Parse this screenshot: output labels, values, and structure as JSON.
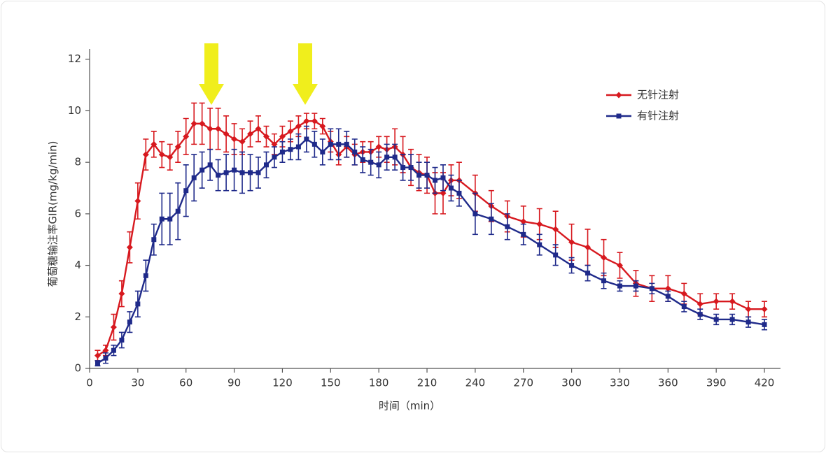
{
  "chart_data": {
    "type": "line",
    "xlabel": "时间（min）",
    "ylabel": "葡萄糖输注率GIR(mg/kg/min)",
    "x": [
      5,
      10,
      15,
      20,
      25,
      30,
      35,
      40,
      45,
      50,
      55,
      60,
      65,
      70,
      75,
      80,
      85,
      90,
      95,
      100,
      105,
      110,
      115,
      120,
      125,
      130,
      135,
      140,
      145,
      150,
      155,
      160,
      165,
      170,
      175,
      180,
      185,
      190,
      195,
      200,
      205,
      210,
      215,
      220,
      225,
      230,
      240,
      250,
      260,
      270,
      280,
      290,
      300,
      310,
      320,
      330,
      340,
      350,
      360,
      370,
      380,
      390,
      400,
      410,
      420
    ],
    "series": [
      {
        "name": "无针注射",
        "color": "#d7191f",
        "marker": "diamond",
        "values": [
          0.5,
          0.7,
          1.6,
          2.9,
          4.7,
          6.5,
          8.3,
          8.7,
          8.3,
          8.2,
          8.6,
          9.0,
          9.5,
          9.5,
          9.3,
          9.3,
          9.1,
          8.9,
          8.8,
          9.1,
          9.3,
          9.0,
          8.7,
          9.0,
          9.2,
          9.4,
          9.6,
          9.6,
          9.4,
          8.8,
          8.3,
          8.6,
          8.3,
          8.4,
          8.4,
          8.6,
          8.5,
          8.6,
          8.3,
          7.8,
          7.6,
          7.5,
          6.8,
          6.8,
          7.3,
          7.3,
          6.8,
          6.3,
          5.9,
          5.7,
          5.6,
          5.4,
          4.9,
          4.7,
          4.3,
          4.0,
          3.3,
          3.1,
          3.1,
          2.9,
          2.5,
          2.6,
          2.6,
          2.3,
          2.3
        ],
        "errors": [
          0.2,
          0.2,
          0.5,
          0.5,
          0.6,
          0.7,
          0.6,
          0.5,
          0.5,
          0.5,
          0.6,
          0.7,
          0.8,
          0.8,
          0.8,
          0.8,
          0.7,
          0.6,
          0.5,
          0.5,
          0.5,
          0.4,
          0.4,
          0.4,
          0.4,
          0.4,
          0.3,
          0.3,
          0.3,
          0.4,
          0.4,
          0.4,
          0.4,
          0.4,
          0.4,
          0.4,
          0.5,
          0.7,
          0.7,
          0.7,
          0.7,
          0.7,
          0.8,
          0.8,
          0.6,
          0.7,
          0.7,
          0.6,
          0.6,
          0.6,
          0.6,
          0.7,
          0.7,
          0.7,
          0.7,
          0.5,
          0.5,
          0.5,
          0.5,
          0.4,
          0.4,
          0.3,
          0.3,
          0.3,
          0.3
        ]
      },
      {
        "name": "有针注射",
        "color": "#1f2a8a",
        "marker": "square",
        "values": [
          0.2,
          0.4,
          0.7,
          1.1,
          1.8,
          2.5,
          3.6,
          5.0,
          5.8,
          5.8,
          6.1,
          6.9,
          7.4,
          7.7,
          7.9,
          7.5,
          7.6,
          7.7,
          7.6,
          7.6,
          7.6,
          7.9,
          8.2,
          8.4,
          8.5,
          8.6,
          8.9,
          8.7,
          8.4,
          8.7,
          8.7,
          8.7,
          8.4,
          8.1,
          8.0,
          7.9,
          8.2,
          8.2,
          7.8,
          7.8,
          7.5,
          7.5,
          7.3,
          7.4,
          7.0,
          6.8,
          6.0,
          5.8,
          5.5,
          5.2,
          4.8,
          4.4,
          4.0,
          3.7,
          3.4,
          3.2,
          3.2,
          3.1,
          2.8,
          2.4,
          2.1,
          1.9,
          1.9,
          1.8,
          1.7
        ],
        "errors": [
          0.1,
          0.2,
          0.2,
          0.3,
          0.4,
          0.5,
          0.6,
          0.6,
          1.0,
          1.0,
          1.1,
          1.0,
          0.9,
          0.7,
          0.6,
          0.6,
          0.7,
          0.8,
          0.8,
          0.7,
          0.6,
          0.5,
          0.4,
          0.4,
          0.4,
          0.5,
          0.5,
          0.5,
          0.5,
          0.6,
          0.6,
          0.5,
          0.5,
          0.5,
          0.5,
          0.5,
          0.5,
          0.5,
          0.5,
          0.5,
          0.5,
          0.5,
          0.5,
          0.5,
          0.5,
          0.5,
          0.8,
          0.6,
          0.5,
          0.4,
          0.4,
          0.4,
          0.3,
          0.3,
          0.3,
          0.2,
          0.2,
          0.2,
          0.2,
          0.2,
          0.2,
          0.2,
          0.2,
          0.2,
          0.2
        ]
      }
    ],
    "xlim": [
      0,
      430
    ],
    "xticks": [
      0,
      30,
      60,
      90,
      120,
      150,
      180,
      210,
      240,
      270,
      300,
      330,
      360,
      390,
      420
    ],
    "ylim": [
      0,
      12.4
    ],
    "yticks": [
      0,
      2,
      4,
      6,
      8,
      10,
      12
    ],
    "legend": "upper right"
  }
}
